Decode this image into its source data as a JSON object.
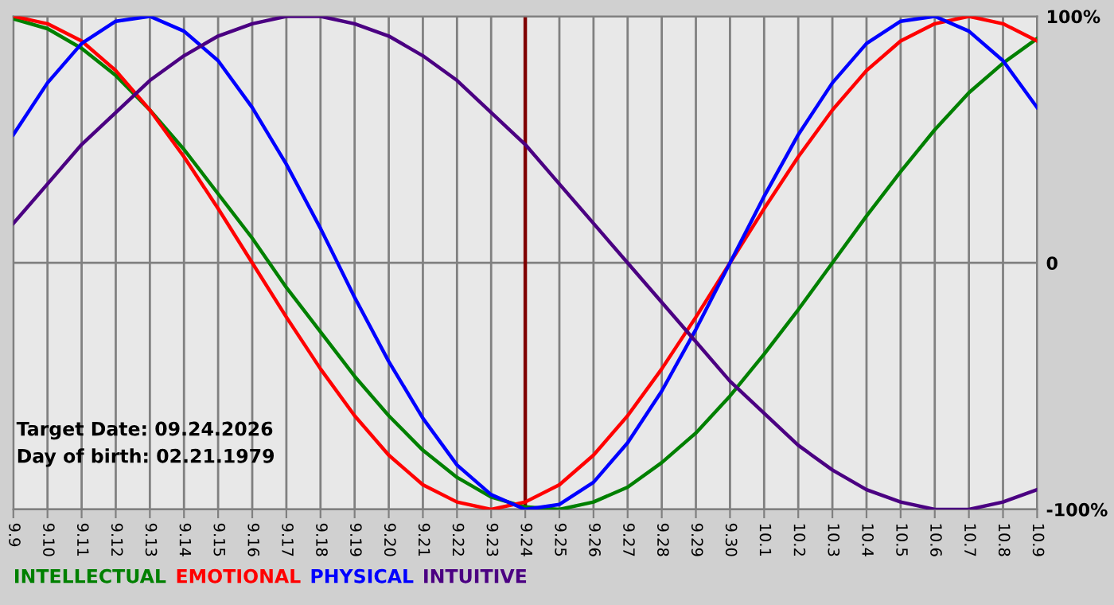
{
  "chart_data": {
    "type": "line",
    "categories": [
      "9.9",
      "9.10",
      "9.11",
      "9.12",
      "9.13",
      "9.14",
      "9.15",
      "9.16",
      "9.17",
      "9.18",
      "9.19",
      "9.20",
      "9.21",
      "9.22",
      "9.23",
      "9.24",
      "9.25",
      "9.26",
      "9.27",
      "9.28",
      "9.29",
      "9.30",
      "10.1",
      "10.2",
      "10.3",
      "10.4",
      "10.5",
      "10.6",
      "10.7",
      "10.8",
      "10.9"
    ],
    "series": [
      {
        "name": "INTELLECTUAL",
        "color": "#008000",
        "values": [
          99,
          95,
          87,
          76,
          62,
          46,
          28,
          10,
          -10,
          -28,
          -46,
          -62,
          -76,
          -87,
          -95,
          -99,
          -100,
          -97,
          -91,
          -81,
          -69,
          -54,
          -37,
          -19,
          0,
          19,
          37,
          54,
          69,
          81,
          91
        ]
      },
      {
        "name": "EMOTIONAL",
        "color": "#ff0000",
        "values": [
          100,
          97,
          90,
          78,
          62,
          43,
          22,
          0,
          -22,
          -43,
          -62,
          -78,
          -90,
          -97,
          -100,
          -97,
          -90,
          -78,
          -62,
          -43,
          -22,
          0,
          22,
          43,
          62,
          78,
          90,
          97,
          100,
          97,
          90
        ]
      },
      {
        "name": "PHYSICAL",
        "color": "#0000ff",
        "values": [
          52,
          73,
          89,
          98,
          100,
          94,
          82,
          63,
          40,
          14,
          -14,
          -40,
          -63,
          -82,
          -94,
          -100,
          -98,
          -89,
          -73,
          -52,
          -27,
          0,
          27,
          52,
          73,
          89,
          98,
          100,
          94,
          82,
          63
        ]
      },
      {
        "name": "INTUITIVE",
        "color": "#4b0082",
        "values": [
          16,
          32,
          48,
          61,
          74,
          84,
          92,
          97,
          100,
          100,
          97,
          92,
          84,
          74,
          61,
          48,
          32,
          16,
          0,
          -16,
          -32,
          -48,
          -61,
          -74,
          -84,
          -92,
          -97,
          -100,
          -100,
          -97,
          -92
        ]
      }
    ],
    "ylim": [
      -100,
      100
    ],
    "yticks": [
      {
        "value": 100,
        "label": "100%"
      },
      0,
      {
        "value": -100,
        "label": "-100%"
      }
    ],
    "ref_lines": [
      {
        "axis": "x",
        "value": "9.24",
        "color": "#800000"
      }
    ],
    "annotations": [
      "Target Date: 09.24.2026",
      "Day of birth: 02.21.1979"
    ],
    "grid": true,
    "legend": "bottom left",
    "marker": "none",
    "line_style": "solid"
  }
}
